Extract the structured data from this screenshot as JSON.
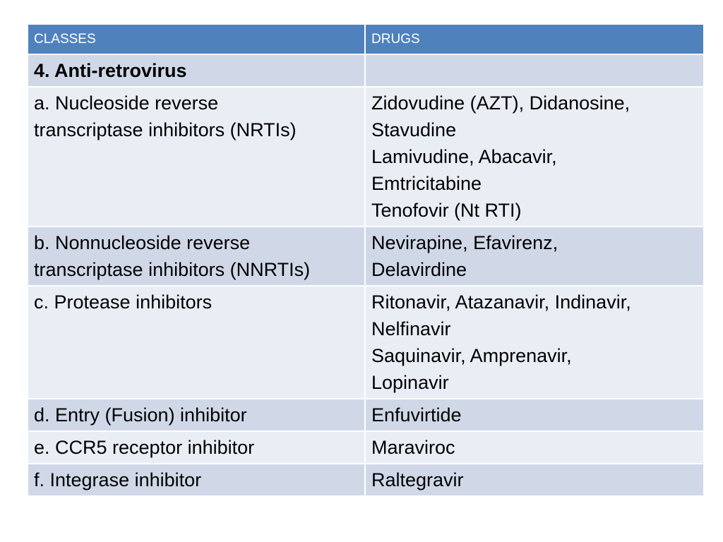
{
  "table": {
    "headers": {
      "classes": "CLASSES",
      "drugs": "DRUGS"
    },
    "section_title": "4. Anti-retrovirus",
    "rows": [
      {
        "class_lines": [
          "a. Nucleoside reverse",
          "transcriptase inhibitors (NRTIs)"
        ],
        "drug_lines": [
          "Zidovudine (AZT), Didanosine,",
          "Stavudine",
          "Lamivudine, Abacavir,",
          "Emtricitabine",
          "Tenofovir (Nt RTI)"
        ]
      },
      {
        "class_lines": [
          "b. Nonnucleoside reverse",
          "transcriptase inhibitors (NNRTIs)"
        ],
        "drug_lines": [
          "Nevirapine, Efavirenz,",
          "Delavirdine"
        ]
      },
      {
        "class_lines": [
          "c. Protease inhibitors"
        ],
        "drug_lines": [
          "Ritonavir, Atazanavir, Indinavir,",
          "Nelfinavir",
          "Saquinavir, Amprenavir,",
          "Lopinavir"
        ]
      },
      {
        "class_lines": [
          "d. Entry (Fusion) inhibitor"
        ],
        "drug_lines": [
          "Enfuvirtide"
        ]
      },
      {
        "class_lines": [
          "e. CCR5 receptor inhibitor"
        ],
        "drug_lines": [
          "Maraviroc"
        ]
      },
      {
        "class_lines": [
          "f. Integrase inhibitor"
        ],
        "drug_lines": [
          "Raltegravir"
        ]
      }
    ]
  },
  "colors": {
    "header_bg": "#4f81bd",
    "row_dark": "#d0d8e8",
    "row_light": "#e9edf4"
  }
}
